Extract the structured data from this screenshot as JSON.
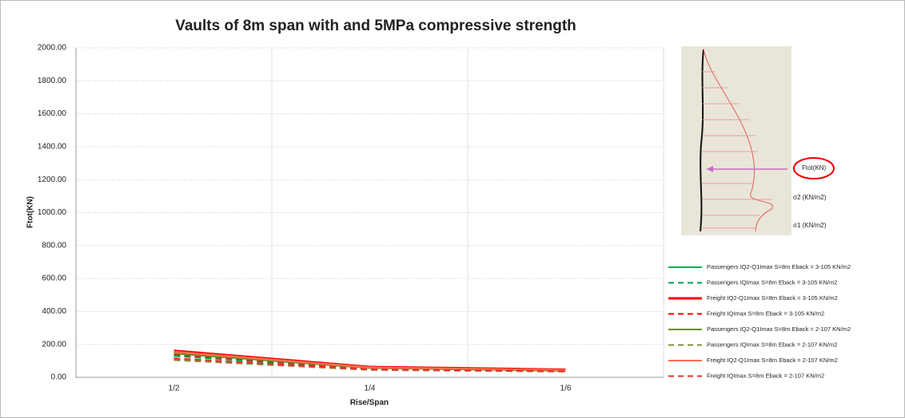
{
  "chart_data": {
    "type": "line",
    "title": "Vaults of 8m span with and 5MPa compressive strength",
    "x_label": "Rise/Span",
    "y_label": "Ftot(KN)",
    "categories": [
      "1/2",
      "1/4",
      "1/6"
    ],
    "ylim": [
      0,
      2000
    ],
    "yticks": [
      {
        "value": 0,
        "label": "0.00"
      },
      {
        "value": 200,
        "label": "200.00"
      },
      {
        "value": 400,
        "label": "400.00"
      },
      {
        "value": 600,
        "label": "600.00"
      },
      {
        "value": 800,
        "label": "800.00"
      },
      {
        "value": 1000,
        "label": "1000.00"
      },
      {
        "value": 1200,
        "label": "1200.00"
      },
      {
        "value": 1400,
        "label": "1400.00"
      },
      {
        "value": 1600,
        "label": "1600.00"
      },
      {
        "value": 1800,
        "label": "1800.00"
      },
      {
        "value": 2000,
        "label": "2000.00"
      }
    ],
    "grid": true,
    "legend": "right",
    "series": [
      {
        "name": "Passengers IQ2-Q1Imax S=8m Eback = 3-105 KN/m2",
        "color": "#00b050",
        "dash": false,
        "values": [
          150,
          58,
          42
        ]
      },
      {
        "name": "Passengers IQImax S=8m Eback = 3-105 KN/m2",
        "color": "#00a050",
        "dash": true,
        "values": [
          130,
          52,
          40
        ]
      },
      {
        "name": "Freight IQ2-Q1Imax S=8m Eback = 3-105 KN/m2",
        "color": "#ff0000",
        "dash": false,
        "values": [
          160,
          62,
          45
        ]
      },
      {
        "name": "Freight IQImax S=8m Eback = 3-105 KN/m2",
        "color": "#ff0000",
        "dash": true,
        "values": [
          140,
          55,
          42
        ]
      },
      {
        "name": "Passengers IQ2-Q1Imax S=8m Eback = 2-107 KN/m2",
        "color": "#6b8e23",
        "dash": false,
        "values": [
          145,
          56,
          40
        ]
      },
      {
        "name": "Passengers IQImax S=8m Eback = 2-107 KN/m2",
        "color": "#8a8a3a",
        "dash": true,
        "values": [
          105,
          45,
          35
        ]
      },
      {
        "name": "Freight IQ2-Q1Imax S=8m Eback = 2-107 KN/m2",
        "color": "#ff6f50",
        "dash": false,
        "values": [
          155,
          60,
          44
        ]
      },
      {
        "name": "Freight IQImax S=8m Eback = 2-107 KN/m2",
        "color": "#e83030",
        "dash": true,
        "values": [
          115,
          48,
          37
        ]
      }
    ],
    "inset": {
      "labels": [
        "Ftot(KN)",
        "σ2 (KN/m2)",
        "σ1 (KN/m2)"
      ]
    }
  }
}
